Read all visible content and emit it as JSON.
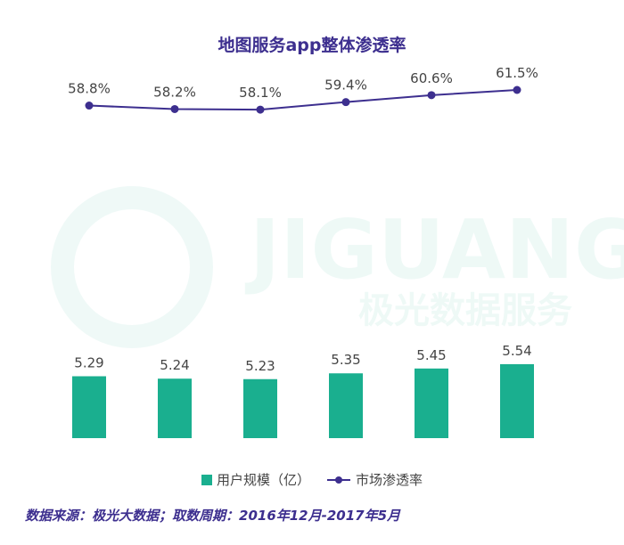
{
  "chart_data": {
    "type": "bar",
    "title": "地图服务app整体渗透率",
    "categories": [
      "",
      "",
      "",
      "",
      "",
      ""
    ],
    "series": [
      {
        "name": "用户规模（亿）",
        "type": "bar",
        "values": [
          5.29,
          5.24,
          5.23,
          5.35,
          5.45,
          5.54
        ],
        "labels": [
          "5.29",
          "5.24",
          "5.23",
          "5.35",
          "5.45",
          "5.54"
        ],
        "color": "#1aaf8f"
      },
      {
        "name": "市场渗透率",
        "type": "line",
        "values": [
          58.8,
          58.2,
          58.1,
          59.4,
          60.6,
          61.5
        ],
        "labels": [
          "58.8%",
          "58.2%",
          "58.1%",
          "59.4%",
          "60.6%",
          "61.5%"
        ],
        "color": "#3d2f8f"
      }
    ],
    "legend": "bottom-center"
  },
  "watermark": {
    "brand": "JIGUANG",
    "tagline": "极光数据服务"
  },
  "source_note": "数据来源：极光大数据；取数周期：2016年12月-2017年5月"
}
